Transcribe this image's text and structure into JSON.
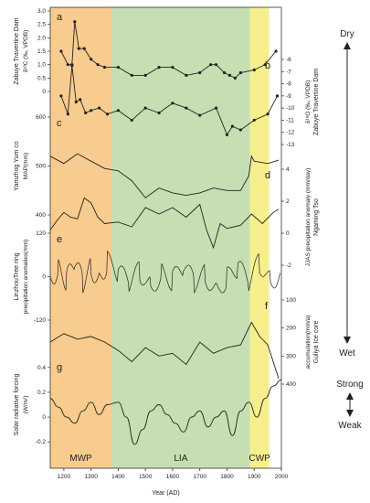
{
  "chart_data": {
    "type": "line",
    "xlabel": "Year (AD)",
    "x_ticks": [
      "1200",
      "1300",
      "1400",
      "1500",
      "1600",
      "1700",
      "1800",
      "1900",
      "2000"
    ],
    "xlim": [
      1150,
      2000
    ],
    "periods": [
      {
        "name": "MWP",
        "start": 1150,
        "end": 1375,
        "color": "#f8cc8e"
      },
      {
        "name": "LIA",
        "start": 1375,
        "end": 1885,
        "color": "#c5dfb2"
      },
      {
        "name": "CWP",
        "start": 1885,
        "end": 1955,
        "color": "#f7ef8e"
      }
    ],
    "panels": [
      {
        "id": "a",
        "left_label": "Zabuye Travertine Dam",
        "left_sub": "δ¹³C (‰, VPDB)",
        "left_ticks": [
          "3.0",
          "2.5",
          "2.0",
          "1.5",
          "1.0",
          "0.5",
          "0"
        ],
        "series": [
          {
            "x": [
              1190,
              1215,
              1230,
              1240,
              1255,
              1275,
              1300,
              1325,
              1350,
              1400,
              1450,
              1500,
              1550,
              1600,
              1650,
              1700,
              1740,
              1760,
              1790,
              1810,
              1830,
              1850,
              1900,
              1940,
              1980
            ],
            "values": [
              1.5,
              1.0,
              1.0,
              2.6,
              1.6,
              1.6,
              1.2,
              1.0,
              0.9,
              0.9,
              0.6,
              0.6,
              0.9,
              0.9,
              0.6,
              0.7,
              1.0,
              1.0,
              0.7,
              0.6,
              0.5,
              0.7,
              0.8,
              1.0,
              1.5
            ]
          }
        ]
      },
      {
        "id": "b",
        "right_label": "Zabuye Travertine Dam",
        "right_sub": "δ¹⁸O (‰, VPDB)",
        "right_ticks": [
          "-6",
          "-7",
          "-8",
          "-9",
          "-10",
          "-11",
          "-12",
          "-13"
        ],
        "series": [
          {
            "x": [
              1190,
              1215,
              1230,
              1245,
              1260,
              1280,
              1300,
              1330,
              1360,
              1400,
              1450,
              1500,
              1550,
              1600,
              1650,
              1700,
              1760,
              1800,
              1820,
              1850,
              1900,
              1950,
              1985
            ],
            "values": [
              -9.0,
              -10.5,
              -6.5,
              -9.5,
              -9.3,
              -10.4,
              -10.2,
              -10.0,
              -10.5,
              -10.2,
              -11.0,
              -10.0,
              -10.4,
              -9.6,
              -10.0,
              -10.6,
              -10.0,
              -12.2,
              -11.5,
              -11.8,
              -11.0,
              -10.5,
              -9.0
            ]
          }
        ]
      },
      {
        "id": "c",
        "left_label": "Yamzhog Yum co",
        "left_sub": "MAP(mm)",
        "left_ticks": [
          "400",
          "500",
          "600"
        ],
        "series": [
          {
            "x": [
              1150,
              1200,
              1250,
              1300,
              1350,
              1400,
              1450,
              1500,
              1550,
              1600,
              1650,
              1700,
              1750,
              1800,
              1850,
              1880,
              1890,
              1900,
              1950,
              1990
            ],
            "values": [
              520,
              505,
              525,
              510,
              495,
              490,
              470,
              435,
              455,
              445,
              440,
              445,
              455,
              450,
              450,
              480,
              520,
              510,
              505,
              512
            ]
          }
        ]
      },
      {
        "id": "d",
        "right_label": "Ngaming Tso",
        "right_sub": "JJAS precipitation anomaly (mm/day)",
        "right_ticks": [
          "4",
          "2",
          "0",
          "-2"
        ],
        "series": [
          {
            "x": [
              1150,
              1175,
              1200,
              1225,
              1250,
              1275,
              1300,
              1325,
              1350,
              1400,
              1450,
              1500,
              1550,
              1600,
              1650,
              1700,
              1725,
              1750,
              1775,
              1800,
              1850,
              1890,
              1930,
              1970,
              1990
            ],
            "values": [
              0.2,
              0.8,
              1.3,
              1.0,
              0.9,
              2.2,
              1.9,
              1.0,
              0.6,
              0.7,
              0.4,
              1.6,
              1.2,
              1.6,
              1.0,
              1.8,
              0.2,
              -0.9,
              0.6,
              0.3,
              0.5,
              1.2,
              0.6,
              1.3,
              1.5
            ]
          }
        ]
      },
      {
        "id": "e",
        "left_label": "LinzhouTree ring",
        "left_sub": "precipitation anomalies(mm)",
        "left_ticks": [
          "120",
          "0",
          "-120"
        ],
        "series": [
          {
            "x": [
              1150,
              1180,
              1210,
              1240,
              1270,
              1300,
              1330,
              1360,
              1400,
              1440,
              1480,
              1520,
              1560,
              1600,
              1640,
              1680,
              1720,
              1760,
              1800,
              1840,
              1880,
              1920,
              1960,
              1995
            ],
            "values": [
              0,
              20,
              -10,
              35,
              -15,
              25,
              -5,
              40,
              10,
              -20,
              15,
              -25,
              10,
              -10,
              20,
              -15,
              5,
              -30,
              -5,
              25,
              -20,
              40,
              -10,
              10
            ]
          }
        ]
      },
      {
        "id": "f",
        "right_label": "Guliya Ice core",
        "right_sub": "accumulation(mm/a)",
        "right_ticks": [
          "100",
          "200",
          "300",
          "400"
        ],
        "series": [
          {
            "x": [
              1150,
              1200,
              1250,
              1300,
              1350,
              1400,
              1450,
              1500,
              1550,
              1600,
              1650,
              1700,
              1750,
              1800,
              1850,
              1890,
              1920,
              1950,
              1990
            ],
            "values": [
              250,
              220,
              240,
              230,
              250,
              280,
              320,
              270,
              300,
              290,
              330,
              250,
              290,
              270,
              260,
              180,
              230,
              260,
              380
            ]
          }
        ]
      },
      {
        "id": "g",
        "left_label": "Solar radiative forcing",
        "left_sub": "(W/m²)",
        "left_ticks": [
          "0.4",
          "0.2",
          "0",
          "-0.2"
        ],
        "series": [
          {
            "x": [
              1150,
              1180,
              1210,
              1240,
              1270,
              1300,
              1330,
              1360,
              1400,
              1430,
              1460,
              1490,
              1520,
              1550,
              1580,
              1610,
              1640,
              1670,
              1700,
              1730,
              1760,
              1790,
              1820,
              1850,
              1880,
              1910,
              1940,
              1970,
              2000
            ],
            "values": [
              0.15,
              0.08,
              0.0,
              -0.05,
              0.05,
              0.12,
              0.02,
              0.1,
              0.12,
              0.0,
              -0.22,
              -0.1,
              0.05,
              0.1,
              0.02,
              -0.05,
              -0.12,
              0.0,
              0.05,
              -0.08,
              0.0,
              0.05,
              -0.15,
              0.05,
              0.12,
              0.0,
              0.15,
              0.25,
              0.3
            ]
          }
        ]
      }
    ],
    "scale_top_label": "Dry",
    "scale_bottom_label": "Wet",
    "solar_top_label": "Strong",
    "solar_bottom_label": "Weak"
  }
}
